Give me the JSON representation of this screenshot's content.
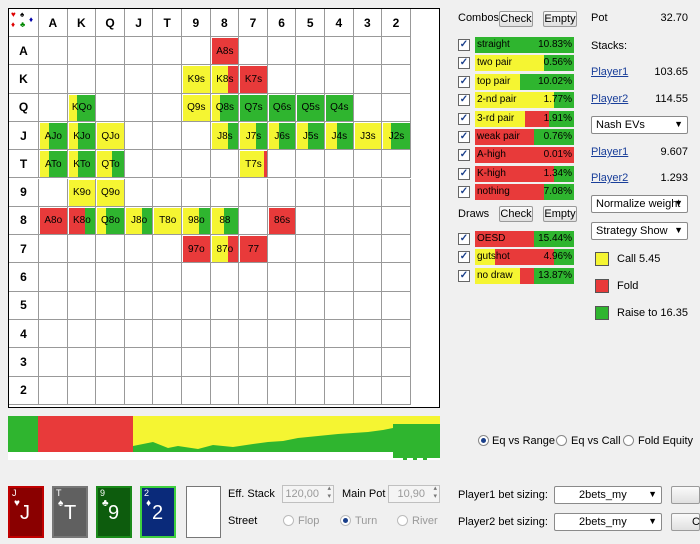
{
  "colors": {
    "call": "#f5f532",
    "fold": "#e83a3a",
    "raise": "#2fb52f"
  },
  "grid": {
    "ranks": [
      "A",
      "K",
      "Q",
      "J",
      "T",
      "9",
      "8",
      "7",
      "6",
      "5",
      "4",
      "3",
      "2"
    ],
    "hands": [
      {
        "label": "A8s",
        "row": 0,
        "col": 6,
        "mix": [
          0,
          1,
          0
        ]
      },
      {
        "label": "K9s",
        "row": 1,
        "col": 5,
        "mix": [
          1,
          0,
          0
        ]
      },
      {
        "label": "K8s",
        "row": 1,
        "col": 6,
        "mix": [
          0.6,
          0.4,
          0
        ]
      },
      {
        "label": "K7s",
        "row": 1,
        "col": 7,
        "mix": [
          0,
          1,
          0
        ]
      },
      {
        "label": "KQo",
        "row": 2,
        "col": 1,
        "mix": [
          0.3,
          0,
          0.7
        ]
      },
      {
        "label": "Q9s",
        "row": 2,
        "col": 5,
        "mix": [
          1,
          0,
          0
        ]
      },
      {
        "label": "Q8s",
        "row": 2,
        "col": 6,
        "mix": [
          0.3,
          0,
          0.7
        ]
      },
      {
        "label": "Q7s",
        "row": 2,
        "col": 7,
        "mix": [
          0,
          0,
          1
        ]
      },
      {
        "label": "Q6s",
        "row": 2,
        "col": 8,
        "mix": [
          0,
          0,
          1
        ]
      },
      {
        "label": "Q5s",
        "row": 2,
        "col": 9,
        "mix": [
          0,
          0,
          1
        ]
      },
      {
        "label": "Q4s",
        "row": 2,
        "col": 10,
        "mix": [
          0,
          0,
          1
        ]
      },
      {
        "label": "AJo",
        "row": 3,
        "col": 0,
        "mix": [
          0.35,
          0,
          0.65
        ]
      },
      {
        "label": "KJo",
        "row": 3,
        "col": 1,
        "mix": [
          0.35,
          0,
          0.65
        ]
      },
      {
        "label": "QJo",
        "row": 3,
        "col": 2,
        "mix": [
          1,
          0,
          0
        ]
      },
      {
        "label": "J8s",
        "row": 3,
        "col": 6,
        "mix": [
          0.6,
          0,
          0.4
        ]
      },
      {
        "label": "J7s",
        "row": 3,
        "col": 7,
        "mix": [
          0.6,
          0,
          0.4
        ]
      },
      {
        "label": "J6s",
        "row": 3,
        "col": 8,
        "mix": [
          0.4,
          0,
          0.6
        ]
      },
      {
        "label": "J5s",
        "row": 3,
        "col": 9,
        "mix": [
          0.4,
          0,
          0.6
        ]
      },
      {
        "label": "J4s",
        "row": 3,
        "col": 10,
        "mix": [
          0.4,
          0,
          0.6
        ]
      },
      {
        "label": "J3s",
        "row": 3,
        "col": 11,
        "mix": [
          1,
          0,
          0
        ]
      },
      {
        "label": "J2s",
        "row": 3,
        "col": 12,
        "mix": [
          0.3,
          0,
          0.7
        ]
      },
      {
        "label": "ATo",
        "row": 4,
        "col": 0,
        "mix": [
          0.35,
          0,
          0.65
        ]
      },
      {
        "label": "KTo",
        "row": 4,
        "col": 1,
        "mix": [
          0.35,
          0,
          0.65
        ]
      },
      {
        "label": "QTo",
        "row": 4,
        "col": 2,
        "mix": [
          0.55,
          0,
          0.45
        ]
      },
      {
        "label": "T7s",
        "row": 4,
        "col": 7,
        "mix": [
          0.9,
          0.1,
          0
        ]
      },
      {
        "label": "K9o",
        "row": 5,
        "col": 1,
        "mix": [
          1,
          0,
          0
        ]
      },
      {
        "label": "Q9o",
        "row": 5,
        "col": 2,
        "mix": [
          1,
          0,
          0
        ]
      },
      {
        "label": "A8o",
        "row": 6,
        "col": 0,
        "mix": [
          0,
          1,
          0
        ]
      },
      {
        "label": "K8o",
        "row": 6,
        "col": 1,
        "mix": [
          0,
          0.6,
          0.4
        ]
      },
      {
        "label": "Q8o",
        "row": 6,
        "col": 2,
        "mix": [
          0.35,
          0,
          0.65
        ]
      },
      {
        "label": "J8o",
        "row": 6,
        "col": 3,
        "mix": [
          0.6,
          0,
          0.4
        ]
      },
      {
        "label": "T8o",
        "row": 6,
        "col": 4,
        "mix": [
          1,
          0,
          0
        ]
      },
      {
        "label": "98o",
        "row": 6,
        "col": 5,
        "mix": [
          0.6,
          0,
          0.4
        ]
      },
      {
        "label": "88",
        "row": 6,
        "col": 6,
        "mix": [
          0.45,
          0,
          0.55
        ]
      },
      {
        "label": "86s",
        "row": 6,
        "col": 8,
        "mix": [
          0,
          1,
          0
        ]
      },
      {
        "label": "97o",
        "row": 7,
        "col": 5,
        "mix": [
          0,
          1,
          0
        ]
      },
      {
        "label": "87o",
        "row": 7,
        "col": 6,
        "mix": [
          0.6,
          0.4,
          0
        ]
      },
      {
        "label": "77",
        "row": 7,
        "col": 7,
        "mix": [
          0,
          1,
          0
        ]
      }
    ]
  },
  "combos": {
    "title": "Combos",
    "check": "Check",
    "empty": "Empty",
    "rows": [
      {
        "label": "straight",
        "pct": "10.83%",
        "mix": [
          0,
          0,
          1
        ]
      },
      {
        "label": "two pair",
        "pct": "0.56%",
        "mix": [
          0.7,
          0,
          0.3
        ]
      },
      {
        "label": "top pair",
        "pct": "10.02%",
        "mix": [
          0.45,
          0,
          0.55
        ]
      },
      {
        "label": "2-nd pair",
        "pct": "1.77%",
        "mix": [
          0.8,
          0,
          0.2
        ]
      },
      {
        "label": "3-rd pair",
        "pct": "1.91%",
        "mix": [
          0.5,
          0.25,
          0.25
        ]
      },
      {
        "label": "weak pair",
        "pct": "0.76%",
        "mix": [
          0,
          0.6,
          0.4
        ]
      },
      {
        "label": "A-high",
        "pct": "0.01%",
        "mix": [
          0,
          1,
          0
        ]
      },
      {
        "label": "K-high",
        "pct": "1.34%",
        "mix": [
          0,
          0.8,
          0.2
        ]
      },
      {
        "label": "nothing",
        "pct": "7.08%",
        "mix": [
          0,
          0.7,
          0.3
        ]
      }
    ]
  },
  "draws": {
    "title": "Draws",
    "check": "Check",
    "empty": "Empty",
    "rows": [
      {
        "label": "OESD",
        "pct": "15.44%",
        "mix": [
          0,
          0.6,
          0.4
        ]
      },
      {
        "label": "gutshot",
        "pct": "4.96%",
        "mix": [
          0.2,
          0.6,
          0.2
        ]
      },
      {
        "label": "no draw",
        "pct": "13.87%",
        "mix": [
          0.45,
          0.15,
          0.4
        ]
      }
    ]
  },
  "info": {
    "pot_label": "Pot",
    "pot_value": "32.70",
    "stacks_label": "Stacks:",
    "p1": "Player1",
    "p1_stack": "103.65",
    "p2": "Player2",
    "p2_stack": "114.55",
    "ev_select": "Nash EVs",
    "p1_ev": "9.607",
    "p2_ev": "1.293",
    "weight_select": "Normalize weight",
    "strategy_select": "Strategy Show",
    "legend": [
      {
        "label": "Call 5.45"
      },
      {
        "label": "Fold"
      },
      {
        "label": "Raise to 16.35"
      }
    ]
  },
  "equity_modes": {
    "options": [
      "Eq vs Range",
      "Eq vs Call",
      "Fold Equity"
    ],
    "selected": 0
  },
  "board": [
    {
      "rank": "J",
      "suit": "♥",
      "border": "#c00000"
    },
    {
      "rank": "T",
      "suit": "♠",
      "border": "#777777"
    },
    {
      "rank": "9",
      "suit": "♣",
      "border": "#1a8a1a"
    },
    {
      "rank": "2",
      "suit": "♦",
      "border": "#3fd03f"
    }
  ],
  "controls": {
    "eff_stack_label": "Eff. Stack",
    "eff_stack": "120,00",
    "main_pot_label": "Main Pot",
    "main_pot": "10,90",
    "street_label": "Street",
    "streets": [
      "Flop",
      "Turn",
      "River"
    ],
    "street_selected": 1,
    "p1_bet_label": "Player1 bet sizing:",
    "p1_bet": "2bets_my",
    "p2_bet_label": "Player2 bet sizing:",
    "p2_bet": "2bets_my",
    "cl_btn": "Cl"
  }
}
